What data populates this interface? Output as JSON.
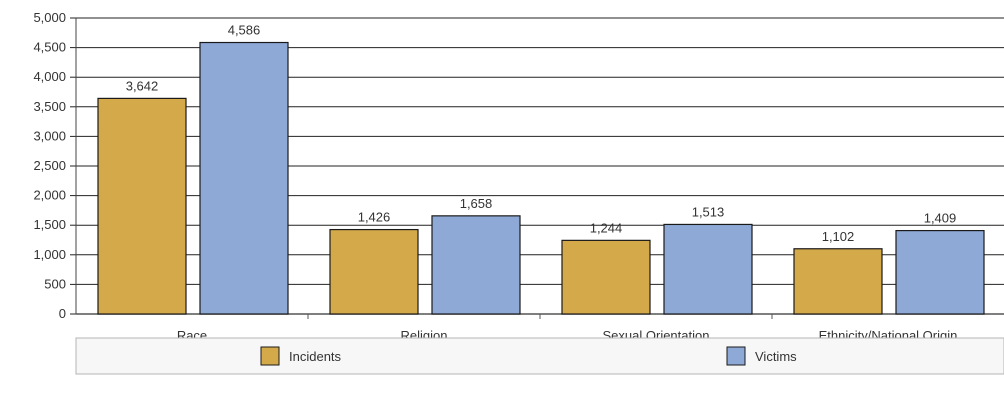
{
  "chart_data": {
    "type": "bar",
    "categories": [
      "Race",
      "Religion",
      "Sexual Orientation",
      "Ethnicity/National Origin"
    ],
    "series": [
      {
        "name": "Incidents",
        "values": [
          3642,
          1426,
          1244,
          1102
        ],
        "value_labels": [
          "3,642",
          "1,426",
          "1,244",
          "1,102"
        ]
      },
      {
        "name": "Victims",
        "values": [
          4586,
          1658,
          1513,
          1409
        ],
        "value_labels": [
          "4,586",
          "1,658",
          "1,513",
          "1,409"
        ]
      }
    ],
    "y_ticks": [
      {
        "value": 0,
        "label": "0"
      },
      {
        "value": 500,
        "label": "500"
      },
      {
        "value": 1000,
        "label": "1,000"
      },
      {
        "value": 1500,
        "label": "1,500"
      },
      {
        "value": 2000,
        "label": "2,000"
      },
      {
        "value": 2500,
        "label": "2,500"
      },
      {
        "value": 3000,
        "label": "3,000"
      },
      {
        "value": 3500,
        "label": "3,500"
      },
      {
        "value": 4000,
        "label": "4,000"
      },
      {
        "value": 4500,
        "label": "4,500"
      },
      {
        "value": 5000,
        "label": "5,000"
      }
    ],
    "ylim": [
      0,
      5000
    ],
    "grid": true,
    "legend_position": "bottom",
    "colors": {
      "Incidents": "#d4a94a",
      "Victims": "#8ea9d6",
      "edge": "#1a1a1a",
      "grid": "#222222"
    }
  }
}
